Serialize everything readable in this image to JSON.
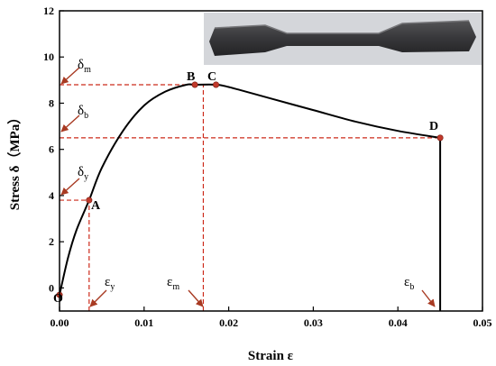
{
  "chart_data": {
    "type": "line",
    "title": "",
    "xlabel": "Strain  ε",
    "ylabel": "Stress δ（MPa）",
    "xlim": [
      0,
      0.05
    ],
    "ylim": [
      -1,
      12
    ],
    "xticks": [
      0.0,
      0.01,
      0.02,
      0.03,
      0.04,
      0.05
    ],
    "xtick_labels": [
      "0.00",
      "0.01",
      "0.02",
      "0.03",
      "0.04",
      "0.05"
    ],
    "yticks": [
      0,
      2,
      4,
      6,
      8,
      10,
      12
    ],
    "ytick_labels": [
      "0",
      "2",
      "4",
      "6",
      "8",
      "10",
      "12"
    ],
    "grid": false,
    "series": [
      {
        "name": "",
        "color": "#000000",
        "x": [
          0.0,
          0.001,
          0.002,
          0.0035,
          0.005,
          0.0075,
          0.01,
          0.0125,
          0.015,
          0.016,
          0.0185,
          0.02,
          0.025,
          0.03,
          0.035,
          0.04,
          0.045,
          0.045
        ],
        "y": [
          -0.3,
          1.3,
          2.5,
          3.8,
          5.2,
          6.8,
          7.9,
          8.5,
          8.8,
          8.8,
          8.8,
          8.7,
          8.2,
          7.7,
          7.2,
          6.8,
          6.5,
          -1.0
        ]
      }
    ],
    "points": [
      {
        "label": "O",
        "x": 0.0,
        "y": -0.3
      },
      {
        "label": "A",
        "x": 0.0035,
        "y": 3.8
      },
      {
        "label": "B",
        "x": 0.016,
        "y": 8.8
      },
      {
        "label": "C",
        "x": 0.0185,
        "y": 8.8
      },
      {
        "label": "D",
        "x": 0.045,
        "y": 6.5
      }
    ],
    "reference_lines": [
      {
        "kind": "h",
        "y": 8.8,
        "x_to": 0.0185
      },
      {
        "kind": "h",
        "y": 6.5,
        "x_to": 0.045
      },
      {
        "kind": "h",
        "y": 3.8,
        "x_to": 0.0035
      },
      {
        "kind": "v",
        "x": 0.0035,
        "y_to": 3.8
      },
      {
        "kind": "v",
        "x": 0.017,
        "y_to": 8.8
      },
      {
        "kind": "v",
        "x": 0.045,
        "y_to": 6.5
      }
    ],
    "annotations": [
      {
        "text": "δ",
        "sub": "m",
        "target": "y-axis"
      },
      {
        "text": "δ",
        "sub": "b",
        "target": "y-axis"
      },
      {
        "text": "δ",
        "sub": "y",
        "target": "y-axis"
      },
      {
        "text": "ε",
        "sub": "y",
        "target": "x-axis"
      },
      {
        "text": "ε",
        "sub": "m",
        "target": "x-axis"
      },
      {
        "text": "ε",
        "sub": "b",
        "target": "x-axis"
      }
    ],
    "inset": {
      "kind": "photo",
      "subject": "specimen"
    }
  },
  "colors": {
    "curve": "#000000",
    "reference": "#cc2a1a",
    "marker": "#c0392b",
    "arrow": "#a83a22",
    "specimen": "#3a3a3c",
    "specimen_bg": "#d4d6da"
  }
}
